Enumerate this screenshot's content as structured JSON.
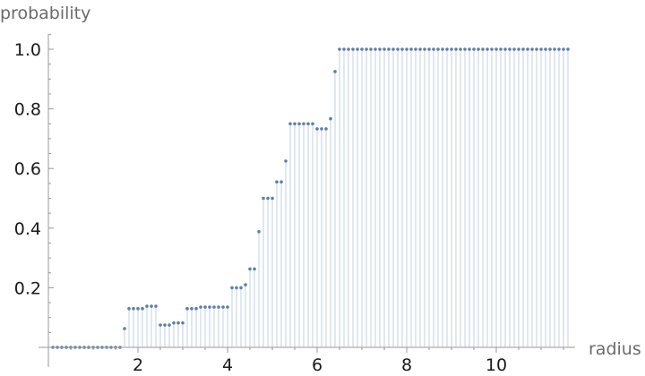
{
  "chart_data": {
    "type": "scatter",
    "style": "stem",
    "title": "",
    "xlabel": "radius",
    "ylabel": "probability",
    "xlim": [
      0,
      11.75
    ],
    "ylim": [
      0,
      1.05
    ],
    "xticks": [
      2,
      4,
      6,
      8,
      10
    ],
    "yticks": [
      0.2,
      0.4,
      0.6,
      0.8,
      1.0
    ],
    "xtick_labels": [
      "2",
      "4",
      "6",
      "8",
      "10"
    ],
    "ytick_labels": [
      "0.2",
      "0.4",
      "0.6",
      "0.8",
      "1.0"
    ],
    "grid": false,
    "point_color": "#5b7fa8",
    "stem_color": "#d6e1ec",
    "x": [
      0.1,
      0.2,
      0.3,
      0.4,
      0.5,
      0.6,
      0.7,
      0.8,
      0.9,
      1.0,
      1.1,
      1.2,
      1.3,
      1.4,
      1.5,
      1.6,
      1.7,
      1.8,
      1.9,
      2.0,
      2.1,
      2.2,
      2.3,
      2.4,
      2.5,
      2.6,
      2.7,
      2.8,
      2.9,
      3.0,
      3.1,
      3.2,
      3.3,
      3.4,
      3.5,
      3.6,
      3.7,
      3.8,
      3.9,
      4.0,
      4.1,
      4.2,
      4.3,
      4.4,
      4.5,
      4.6,
      4.7,
      4.8,
      4.9,
      5.0,
      5.1,
      5.2,
      5.3,
      5.4,
      5.5,
      5.6,
      5.7,
      5.8,
      5.9,
      6.0,
      6.1,
      6.2,
      6.3,
      6.4,
      6.5,
      6.6,
      6.7,
      6.8,
      6.9,
      7.0,
      7.1,
      7.2,
      7.3,
      7.4,
      7.5,
      7.6,
      7.7,
      7.8,
      7.9,
      8.0,
      8.1,
      8.2,
      8.3,
      8.4,
      8.5,
      8.6,
      8.7,
      8.8,
      8.9,
      9.0,
      9.1,
      9.2,
      9.3,
      9.4,
      9.5,
      9.6,
      9.7,
      9.8,
      9.9,
      10.0,
      10.1,
      10.2,
      10.3,
      10.4,
      10.5,
      10.6,
      10.7,
      10.8,
      10.9,
      11.0,
      11.1,
      11.2,
      11.3,
      11.4,
      11.5,
      11.6
    ],
    "y": [
      0,
      0,
      0,
      0,
      0,
      0,
      0,
      0,
      0,
      0,
      0,
      0,
      0,
      0,
      0,
      0,
      0.063,
      0.13,
      0.13,
      0.13,
      0.13,
      0.138,
      0.138,
      0.138,
      0.075,
      0.075,
      0.075,
      0.082,
      0.082,
      0.082,
      0.13,
      0.13,
      0.13,
      0.135,
      0.135,
      0.135,
      0.135,
      0.135,
      0.135,
      0.135,
      0.2,
      0.2,
      0.2,
      0.21,
      0.263,
      0.263,
      0.388,
      0.5,
      0.5,
      0.5,
      0.555,
      0.555,
      0.625,
      0.75,
      0.75,
      0.75,
      0.75,
      0.75,
      0.75,
      0.733,
      0.733,
      0.733,
      0.767,
      0.925,
      1.0,
      1.0,
      1.0,
      1.0,
      1.0,
      1.0,
      1.0,
      1.0,
      1.0,
      1.0,
      1.0,
      1.0,
      1.0,
      1.0,
      1.0,
      1.0,
      1.0,
      1.0,
      1.0,
      1.0,
      1.0,
      1.0,
      1.0,
      1.0,
      1.0,
      1.0,
      1.0,
      1.0,
      1.0,
      1.0,
      1.0,
      1.0,
      1.0,
      1.0,
      1.0,
      1.0,
      1.0,
      1.0,
      1.0,
      1.0,
      1.0,
      1.0,
      1.0,
      1.0,
      1.0,
      1.0,
      1.0,
      1.0,
      1.0,
      1.0,
      1.0,
      1.0
    ]
  }
}
